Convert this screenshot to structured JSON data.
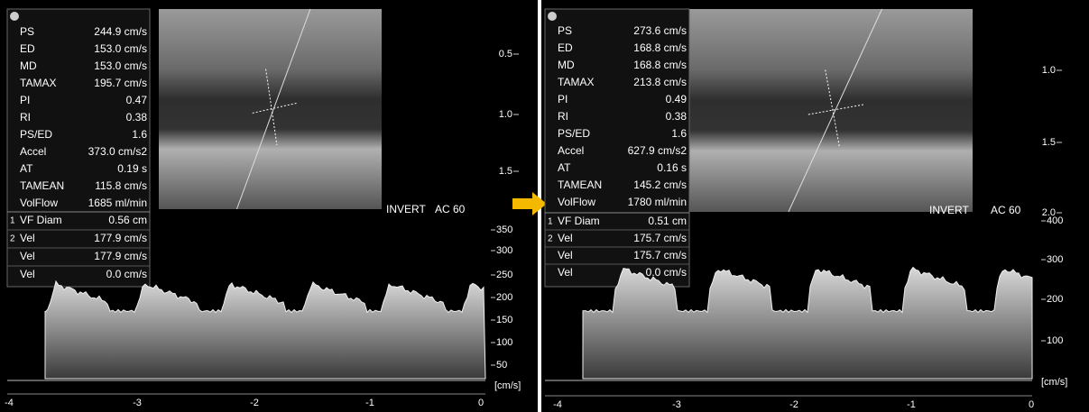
{
  "panels": [
    {
      "measurements": [
        {
          "label": "PS",
          "value": "244.9 cm/s"
        },
        {
          "label": "ED",
          "value": "153.0 cm/s"
        },
        {
          "label": "MD",
          "value": "153.0 cm/s"
        },
        {
          "label": "TAMAX",
          "value": "195.7 cm/s"
        },
        {
          "label": "PI",
          "value": "0.47"
        },
        {
          "label": "RI",
          "value": "0.38"
        },
        {
          "label": "PS/ED",
          "value": "1.6"
        },
        {
          "label": "Accel",
          "value": "373.0 cm/s2"
        },
        {
          "label": "AT",
          "value": "0.19 s"
        },
        {
          "label": "TAMEAN",
          "value": "115.8 cm/s"
        },
        {
          "label": "VolFlow",
          "value": "1685 ml/min"
        }
      ],
      "cursor_measurements": [
        {
          "index": "1",
          "label": "VF Diam",
          "value": "0.56 cm"
        },
        {
          "index": "2",
          "label": "Vel",
          "value": "177.9 cm/s"
        },
        {
          "label": "Vel",
          "value": "177.9 cm/s"
        },
        {
          "label": "Vel",
          "value": "0.0 cm/s"
        }
      ],
      "depth_ticks": [
        "0.5",
        "1.0",
        "1.5"
      ],
      "velocity_ticks": [
        "350",
        "300",
        "250",
        "200",
        "150",
        "100",
        "50"
      ],
      "velocity_unit": "[cm/s]",
      "time_ticks": [
        "-4",
        "-3",
        "-2",
        "-1",
        "0"
      ],
      "invert": "INVERT",
      "angle": "AC 60"
    },
    {
      "measurements": [
        {
          "label": "PS",
          "value": "273.6 cm/s"
        },
        {
          "label": "ED",
          "value": "168.8 cm/s"
        },
        {
          "label": "MD",
          "value": "168.8 cm/s"
        },
        {
          "label": "TAMAX",
          "value": "213.8 cm/s"
        },
        {
          "label": "PI",
          "value": "0.49"
        },
        {
          "label": "RI",
          "value": "0.38"
        },
        {
          "label": "PS/ED",
          "value": "1.6"
        },
        {
          "label": "Accel",
          "value": "627.9 cm/s2"
        },
        {
          "label": "AT",
          "value": "0.16 s"
        },
        {
          "label": "TAMEAN",
          "value": "145.2 cm/s"
        },
        {
          "label": "VolFlow",
          "value": "1780 ml/min"
        }
      ],
      "cursor_measurements": [
        {
          "index": "1",
          "label": "VF Diam",
          "value": "0.51 cm"
        },
        {
          "index": "2",
          "label": "Vel",
          "value": "175.7 cm/s"
        },
        {
          "label": "Vel",
          "value": "175.7 cm/s"
        },
        {
          "label": "Vel",
          "value": "0.0 cm/s"
        }
      ],
      "depth_ticks": [
        "1.0",
        "1.5",
        "2.0"
      ],
      "velocity_ticks": [
        "400",
        "300",
        "200",
        "100"
      ],
      "velocity_unit": "[cm/s]",
      "time_ticks": [
        "-4",
        "-3",
        "-2",
        "-1",
        "0"
      ],
      "invert": "INVERT",
      "angle": "AC 60"
    }
  ]
}
